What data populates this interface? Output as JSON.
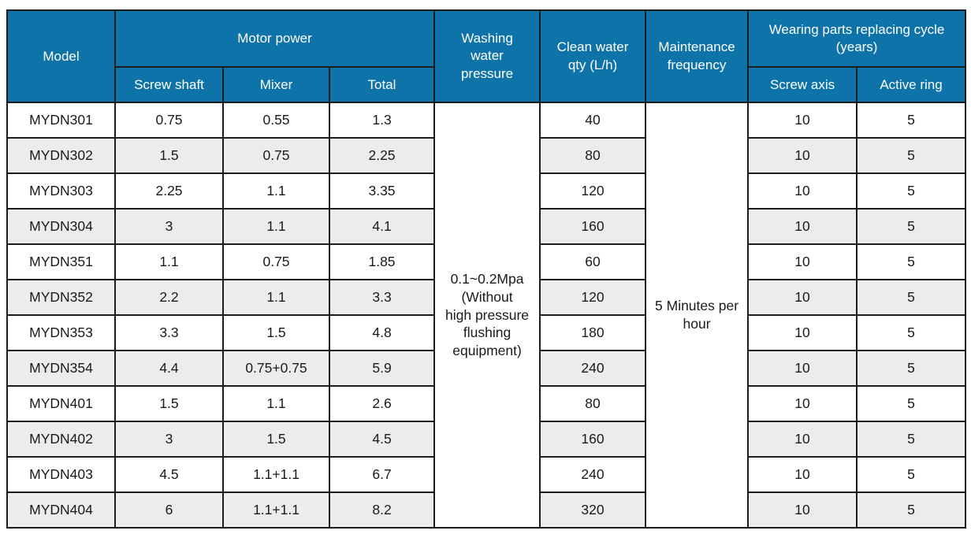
{
  "colors": {
    "header_bg": "#0e73a9",
    "header_text": "#ffffff",
    "row_alt_bg": "#ececec",
    "row_bg": "#ffffff",
    "border": "#1c1c1c",
    "body_text": "#1a1a1a"
  },
  "table": {
    "header": {
      "model": "Model",
      "motor_power": "Motor power",
      "screw_shaft": "Screw shaft",
      "mixer": "Mixer",
      "total": "Total",
      "washing_water_pressure": "Washing\nwater\npressure",
      "clean_water_qty": "Clean water\nqty (L/h)",
      "maintenance_frequency": "Maintenance\nfrequency",
      "wearing_parts": "Wearing parts replacing cycle\n(years)",
      "screw_axis": "Screw axis",
      "active_ring": "Active ring"
    },
    "spanning": {
      "washing_water_pressure_value": "0.1~0.2Mpa\n(Without\nhigh pressure\nflushing\nequipment)",
      "maintenance_frequency_value": "5 Minutes per\nhour"
    },
    "rows": [
      {
        "model": "MYDN301",
        "screw_shaft": "0.75",
        "mixer": "0.55",
        "total": "1.3",
        "clean_water_qty": "40",
        "screw_axis": "10",
        "active_ring": "5"
      },
      {
        "model": "MYDN302",
        "screw_shaft": "1.5",
        "mixer": "0.75",
        "total": "2.25",
        "clean_water_qty": "80",
        "screw_axis": "10",
        "active_ring": "5"
      },
      {
        "model": "MYDN303",
        "screw_shaft": "2.25",
        "mixer": "1.1",
        "total": "3.35",
        "clean_water_qty": "120",
        "screw_axis": "10",
        "active_ring": "5"
      },
      {
        "model": "MYDN304",
        "screw_shaft": "3",
        "mixer": "1.1",
        "total": "4.1",
        "clean_water_qty": "160",
        "screw_axis": "10",
        "active_ring": "5"
      },
      {
        "model": "MYDN351",
        "screw_shaft": "1.1",
        "mixer": "0.75",
        "total": "1.85",
        "clean_water_qty": "60",
        "screw_axis": "10",
        "active_ring": "5"
      },
      {
        "model": "MYDN352",
        "screw_shaft": "2.2",
        "mixer": "1.1",
        "total": "3.3",
        "clean_water_qty": "120",
        "screw_axis": "10",
        "active_ring": "5"
      },
      {
        "model": "MYDN353",
        "screw_shaft": "3.3",
        "mixer": "1.5",
        "total": "4.8",
        "clean_water_qty": "180",
        "screw_axis": "10",
        "active_ring": "5"
      },
      {
        "model": "MYDN354",
        "screw_shaft": "4.4",
        "mixer": "0.75+0.75",
        "total": "5.9",
        "clean_water_qty": "240",
        "screw_axis": "10",
        "active_ring": "5"
      },
      {
        "model": "MYDN401",
        "screw_shaft": "1.5",
        "mixer": "1.1",
        "total": "2.6",
        "clean_water_qty": "80",
        "screw_axis": "10",
        "active_ring": "5"
      },
      {
        "model": "MYDN402",
        "screw_shaft": "3",
        "mixer": "1.5",
        "total": "4.5",
        "clean_water_qty": "160",
        "screw_axis": "10",
        "active_ring": "5"
      },
      {
        "model": "MYDN403",
        "screw_shaft": "4.5",
        "mixer": "1.1+1.1",
        "total": "6.7",
        "clean_water_qty": "240",
        "screw_axis": "10",
        "active_ring": "5"
      },
      {
        "model": "MYDN404",
        "screw_shaft": "6",
        "mixer": "1.1+1.1",
        "total": "8.2",
        "clean_water_qty": "320",
        "screw_axis": "10",
        "active_ring": "5"
      }
    ]
  }
}
